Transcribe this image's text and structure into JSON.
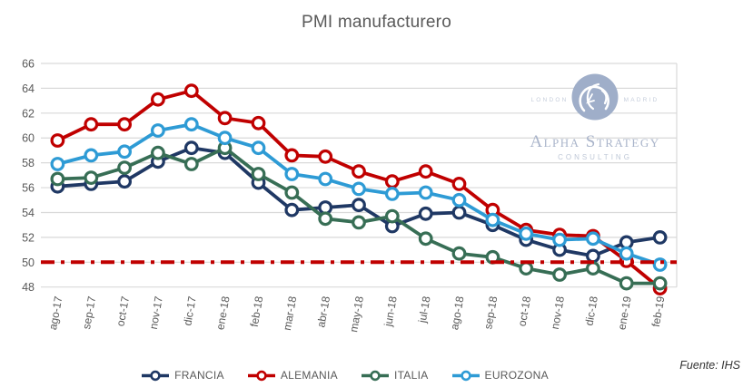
{
  "title": "PMI manufacturero",
  "source": "Fuente: IHS",
  "watermark": {
    "left_city": "LONDON",
    "right_city": "MADRID",
    "brand": "Alpha Strategy",
    "division": "CONSULTING"
  },
  "colors": {
    "grid": "#D9D9D9",
    "axis_text": "#595959",
    "title_text": "#595959",
    "reference": "#C00000",
    "watermark_blue": "#9FAEC9"
  },
  "chart_data": {
    "type": "line",
    "title": "PMI manufacturero",
    "categories": [
      "ago-17",
      "sep-17",
      "oct-17",
      "nov-17",
      "dic-17",
      "ene-18",
      "feb-18",
      "mar-18",
      "abr-18",
      "may-18",
      "jun-18",
      "jul-18",
      "ago-18",
      "sep-18",
      "oct-18",
      "nov-18",
      "dic-18",
      "ene-19",
      "feb-19"
    ],
    "series": [
      {
        "name": "FRANCIA",
        "color": "#1F3864",
        "values": [
          56.1,
          56.3,
          56.5,
          58.1,
          59.2,
          58.8,
          56.4,
          54.2,
          54.4,
          54.6,
          52.9,
          53.9,
          54.0,
          53.0,
          51.8,
          51.0,
          50.5,
          51.6,
          52.0
        ]
      },
      {
        "name": "ALEMANIA",
        "color": "#C00000",
        "values": [
          59.8,
          61.1,
          61.1,
          63.1,
          63.8,
          61.6,
          61.2,
          58.6,
          58.5,
          57.3,
          56.5,
          57.3,
          56.3,
          54.2,
          52.6,
          52.2,
          52.1,
          50.1,
          47.9
        ]
      },
      {
        "name": "ITALIA",
        "color": "#376E55",
        "values": [
          56.7,
          56.8,
          57.6,
          58.8,
          57.9,
          59.2,
          57.1,
          55.6,
          53.5,
          53.2,
          53.7,
          51.9,
          50.7,
          50.4,
          49.5,
          49.0,
          49.5,
          48.3,
          48.3
        ]
      },
      {
        "name": "EUROZONA",
        "color": "#2E9BD5",
        "values": [
          57.9,
          58.6,
          58.9,
          60.6,
          61.1,
          60.0,
          59.2,
          57.1,
          56.7,
          55.9,
          55.5,
          55.6,
          55.0,
          53.4,
          52.3,
          51.8,
          51.9,
          50.7,
          49.8
        ]
      }
    ],
    "ylim": [
      48,
      66
    ],
    "ytick_step": 2,
    "reference_line": {
      "value": 50,
      "color": "#C00000",
      "style": "dash-dot"
    },
    "grid": true,
    "legend_position": "bottom",
    "xlabel": "",
    "ylabel": ""
  }
}
